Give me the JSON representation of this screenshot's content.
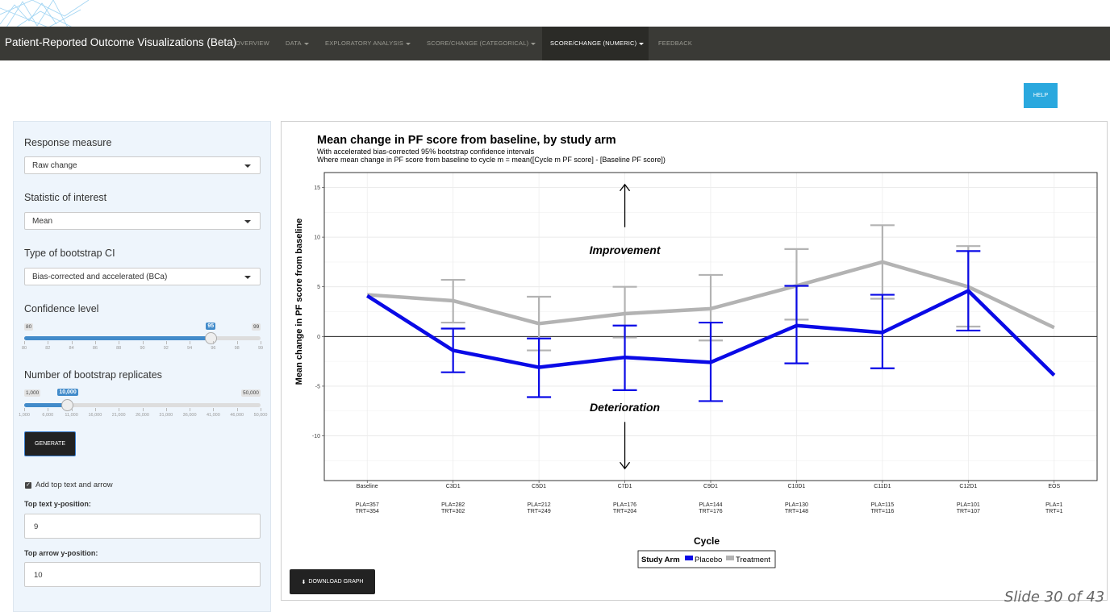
{
  "navbar": {
    "brand": "Patient-Reported Outcome Visualizations (Beta)",
    "items": [
      {
        "label": "OVERVIEW"
      },
      {
        "label": "DATA"
      },
      {
        "label": "EXPLORATORY ANALYSIS"
      },
      {
        "label": "SCORE/CHANGE (CATEGORICAL)"
      },
      {
        "label": "SCORE/CHANGE (NUMERIC)"
      },
      {
        "label": "FEEDBACK"
      }
    ]
  },
  "help_label": "HELP",
  "sidebar": {
    "response_measure": {
      "label": "Response measure",
      "value": "Raw change"
    },
    "statistic": {
      "label": "Statistic of interest",
      "value": "Mean"
    },
    "ci_type": {
      "label": "Type of bootstrap CI",
      "value": "Bias-corrected and accelerated (BCa)"
    },
    "confidence": {
      "label": "Confidence level",
      "min": "80",
      "max": "99",
      "value": "95",
      "fraction": 0.7895,
      "ticks": [
        "80",
        "82",
        "84",
        "86",
        "88",
        "90",
        "92",
        "94",
        "96",
        "98",
        "99"
      ]
    },
    "replicates": {
      "label": "Number of bootstrap replicates",
      "min": "1,000",
      "max": "50,000",
      "value": "10,000",
      "fraction": 0.1837,
      "ticks": [
        "1,000",
        "6,000",
        "11,000",
        "16,000",
        "21,000",
        "26,000",
        "31,000",
        "36,000",
        "41,000",
        "46,000",
        "50,000"
      ]
    },
    "generate_label": "GENERATE",
    "add_top_text_label": "Add top text and arrow",
    "top_text_y": {
      "label": "Top text y-position:",
      "value": "9"
    },
    "top_arrow_y": {
      "label": "Top arrow y-position:",
      "value": "10"
    }
  },
  "download_label": "DOWNLOAD GRAPH",
  "slide_label": "Slide 30 of 43",
  "chart_data": {
    "type": "line",
    "title": "Mean change in PF score from baseline, by study arm",
    "subtitle_lines": [
      "With accelerated bias-corrected 95% bootstrap confidence intervals",
      "Where mean change in PF score from baseline to cycle m = mean([Cycle m PF score] - [Baseline PF score])"
    ],
    "xlabel": "Cycle",
    "ylabel": "Mean change in PF score from baseline",
    "ylim": [
      -14.5,
      16.5
    ],
    "yticks": [
      15,
      10,
      5,
      0,
      -5,
      -10
    ],
    "categories": [
      "Baseline",
      "C3D1",
      "C5D1",
      "C7D1",
      "C9D1",
      "C10D1",
      "C11D1",
      "C12D1",
      "EOS"
    ],
    "counts_placebo": [
      "PLA=357",
      "PLA=282",
      "PLA=212",
      "PLA=176",
      "PLA=144",
      "PLA=130",
      "PLA=115",
      "PLA=101",
      "PLA=1"
    ],
    "counts_treatment": [
      "TRT=354",
      "TRT=302",
      "TRT=249",
      "TRT=204",
      "TRT=176",
      "TRT=148",
      "TRT=116",
      "TRT=107",
      "TRT=1"
    ],
    "series": [
      {
        "name": "Placebo",
        "color": "#0a0ae6",
        "values": [
          4.1,
          -1.4,
          -3.1,
          -2.1,
          -2.6,
          1.1,
          0.4,
          4.6,
          -3.9
        ],
        "lower": [
          null,
          -3.6,
          -6.1,
          -5.4,
          -6.5,
          -2.7,
          -3.2,
          0.6,
          null
        ],
        "upper": [
          null,
          0.8,
          -0.2,
          1.1,
          1.4,
          5.1,
          4.2,
          8.6,
          null
        ]
      },
      {
        "name": "Treatment",
        "color": "#b3b3b3",
        "values": [
          4.2,
          3.6,
          1.3,
          2.3,
          2.8,
          5.1,
          7.5,
          5.0,
          0.9
        ],
        "lower": [
          null,
          1.4,
          -1.4,
          -0.1,
          -0.4,
          1.7,
          3.8,
          1.0,
          null
        ],
        "upper": [
          null,
          5.7,
          4.0,
          5.0,
          6.2,
          8.8,
          11.2,
          9.1,
          null
        ]
      }
    ],
    "annotations": [
      {
        "text": "Improvement",
        "y": 8.7
      },
      {
        "text": "Deterioration",
        "y": -7.1
      }
    ],
    "arrows": [
      {
        "from": 11.0,
        "to": 15.3
      },
      {
        "from": -8.6,
        "to": -13.3
      }
    ],
    "legend": {
      "title": "Study Arm",
      "position": "bottom"
    }
  }
}
